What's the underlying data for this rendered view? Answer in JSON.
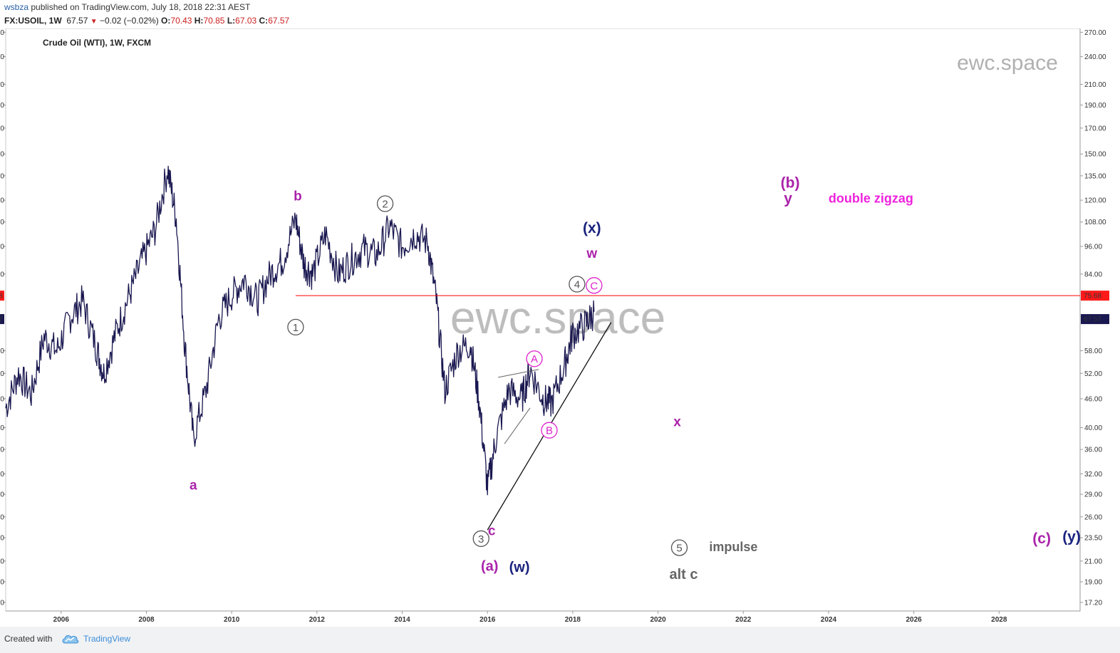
{
  "header": {
    "user": "wsbza",
    "published_text": "published on TradingView.com, July 18, 2018 22:31 AEST",
    "symbol": "FX:USOIL, 1W",
    "price": "67.57",
    "change": "−0.02 (−0.02%)",
    "o_label": "O:",
    "o_value": "70.43",
    "h_label": "H:",
    "h_value": "70.85",
    "l_label": "L:",
    "l_value": "67.03",
    "c_label": "C:",
    "c_value": "67.57"
  },
  "footer": {
    "created_with": "Created with",
    "brand": "TradingView"
  },
  "chart_data": {
    "type": "line",
    "title": "Crude Oil (WTI), 1W, FXCM",
    "watermark_large": "ewc.space",
    "watermark_small": "ewc.space",
    "x_ticks": [
      "2006",
      "2008",
      "2010",
      "2012",
      "2014",
      "2016",
      "2018",
      "2020",
      "2022",
      "2024",
      "2026",
      "2028"
    ],
    "y_scale": "log",
    "y_ticks": [
      17.2,
      19.0,
      21.0,
      23.5,
      26.0,
      29.0,
      32.0,
      36.0,
      40.0,
      46.0,
      52.0,
      58.0,
      67.57,
      75.68,
      84.0,
      96.0,
      108.0,
      120.0,
      135.0,
      150.0,
      170.0,
      190.0,
      210.0,
      240.0,
      270.0
    ],
    "y_tick_labels": [
      "17.20",
      "19.00",
      "21.00",
      "23.50",
      "26.00",
      "29.00",
      "32.00",
      "36.00",
      "40.00",
      "46.00",
      "52.00",
      "58.00",
      "67.57",
      "75.68",
      "84.00",
      "96.00",
      "108.00",
      "120.00",
      "135.00",
      "150.00",
      "170.00",
      "190.00",
      "210.00",
      "240.00",
      "270.00"
    ],
    "ylim": [
      16.5,
      275
    ],
    "xlim": [
      2004.7,
      2029.9
    ],
    "series": [
      {
        "x": [
          2004.7,
          2005.0,
          2005.3,
          2005.6,
          2005.9,
          2006.2,
          2006.5,
          2006.8,
          2007.0,
          2007.3,
          2007.6,
          2007.9,
          2008.2,
          2008.5,
          2008.7,
          2008.9,
          2009.1,
          2009.4,
          2009.7,
          2010.0,
          2010.3,
          2010.6,
          2010.9,
          2011.2,
          2011.5,
          2011.7,
          2011.9,
          2012.2,
          2012.5,
          2012.8,
          2013.1,
          2013.4,
          2013.7,
          2014.0,
          2014.3,
          2014.6,
          2014.8,
          2015.0,
          2015.3,
          2015.6,
          2015.8,
          2016.0,
          2016.2,
          2016.5,
          2016.8,
          2017.0,
          2017.3,
          2017.5,
          2017.8,
          2018.0,
          2018.3,
          2018.5
        ],
        "close": [
          44,
          52,
          47,
          62,
          58,
          68,
          74,
          60,
          52,
          64,
          76,
          90,
          104,
          140,
          110,
          60,
          38,
          48,
          68,
          76,
          82,
          74,
          84,
          90,
          110,
          88,
          84,
          102,
          84,
          90,
          95,
          92,
          106,
          96,
          102,
          98,
          74,
          48,
          58,
          60,
          46,
          30,
          38,
          48,
          46,
          53,
          46,
          45,
          54,
          63,
          66,
          70
        ]
      }
    ],
    "hline": {
      "value": 75.68,
      "label": "75.68",
      "color": "#ff0000",
      "x_start": 2011.5
    },
    "last_price": {
      "value": 67.57,
      "label": "67.57"
    },
    "trendline": {
      "x1": 2016.0,
      "y1": 24.4,
      "x2": 2018.9,
      "y2": 66.5
    },
    "triangle": {
      "upper": {
        "x1": 2016.25,
        "y1": 51.0,
        "x2": 2017.2,
        "y2": 53.0
      },
      "lower": {
        "x1": 2016.4,
        "y1": 37.0,
        "x2": 2017.0,
        "y2": 44.0
      }
    },
    "annotations": [
      {
        "text": "a",
        "x": 2009.1,
        "y": 30.2,
        "color": "#aa22aa",
        "size": 19
      },
      {
        "text": "b",
        "x": 2011.55,
        "y": 122.0,
        "color": "#aa22aa",
        "size": 19
      },
      {
        "text": "c",
        "x": 2016.1,
        "y": 24.2,
        "color": "#aa22aa",
        "size": 19
      },
      {
        "text": "(a)",
        "x": 2016.05,
        "y": 20.4,
        "color": "#aa22aa",
        "size": 20
      },
      {
        "text": "(w)",
        "x": 2016.75,
        "y": 20.3,
        "color": "#1a237e",
        "size": 20
      },
      {
        "text": "(x)",
        "x": 2018.45,
        "y": 104.5,
        "color": "#1a237e",
        "size": 21
      },
      {
        "text": "w",
        "x": 2018.45,
        "y": 92.5,
        "color": "#aa22aa",
        "size": 19
      },
      {
        "text": "x",
        "x": 2020.45,
        "y": 41.0,
        "color": "#aa22aa",
        "size": 19
      },
      {
        "text": "(b)",
        "x": 2023.1,
        "y": 130.0,
        "color": "#aa22aa",
        "size": 21
      },
      {
        "text": "y",
        "x": 2023.05,
        "y": 120.5,
        "color": "#aa22aa",
        "size": 21
      },
      {
        "text": "double zigzag",
        "x": 2024.0,
        "y": 120.5,
        "color": "#ee22dd",
        "size": 18,
        "anchor": "start"
      },
      {
        "text": "(c)",
        "x": 2029.0,
        "y": 23.3,
        "color": "#aa22aa",
        "size": 21
      },
      {
        "text": "(y)",
        "x": 2029.7,
        "y": 23.5,
        "color": "#1a237e",
        "size": 21
      },
      {
        "text": "impulse",
        "x": 2021.2,
        "y": 22.4,
        "color": "#666666",
        "size": 18,
        "anchor": "start"
      },
      {
        "text": "alt c",
        "x": 2020.6,
        "y": 19.6,
        "color": "#666666",
        "size": 20
      }
    ],
    "circles": [
      {
        "text": "1",
        "x": 2011.5,
        "y": 65.0,
        "color": "#555555"
      },
      {
        "text": "2",
        "x": 2013.6,
        "y": 118.0,
        "color": "#555555"
      },
      {
        "text": "3",
        "x": 2015.85,
        "y": 23.4,
        "color": "#555555"
      },
      {
        "text": "4",
        "x": 2018.1,
        "y": 80.0,
        "color": "#555555"
      },
      {
        "text": "5",
        "x": 2020.5,
        "y": 22.4,
        "color": "#555555"
      },
      {
        "text": "A",
        "x": 2017.1,
        "y": 55.8,
        "color": "#dd22cc"
      },
      {
        "text": "B",
        "x": 2017.45,
        "y": 39.5,
        "color": "#dd22cc"
      },
      {
        "text": "C",
        "x": 2018.5,
        "y": 79.5,
        "color": "#dd22cc"
      }
    ]
  }
}
